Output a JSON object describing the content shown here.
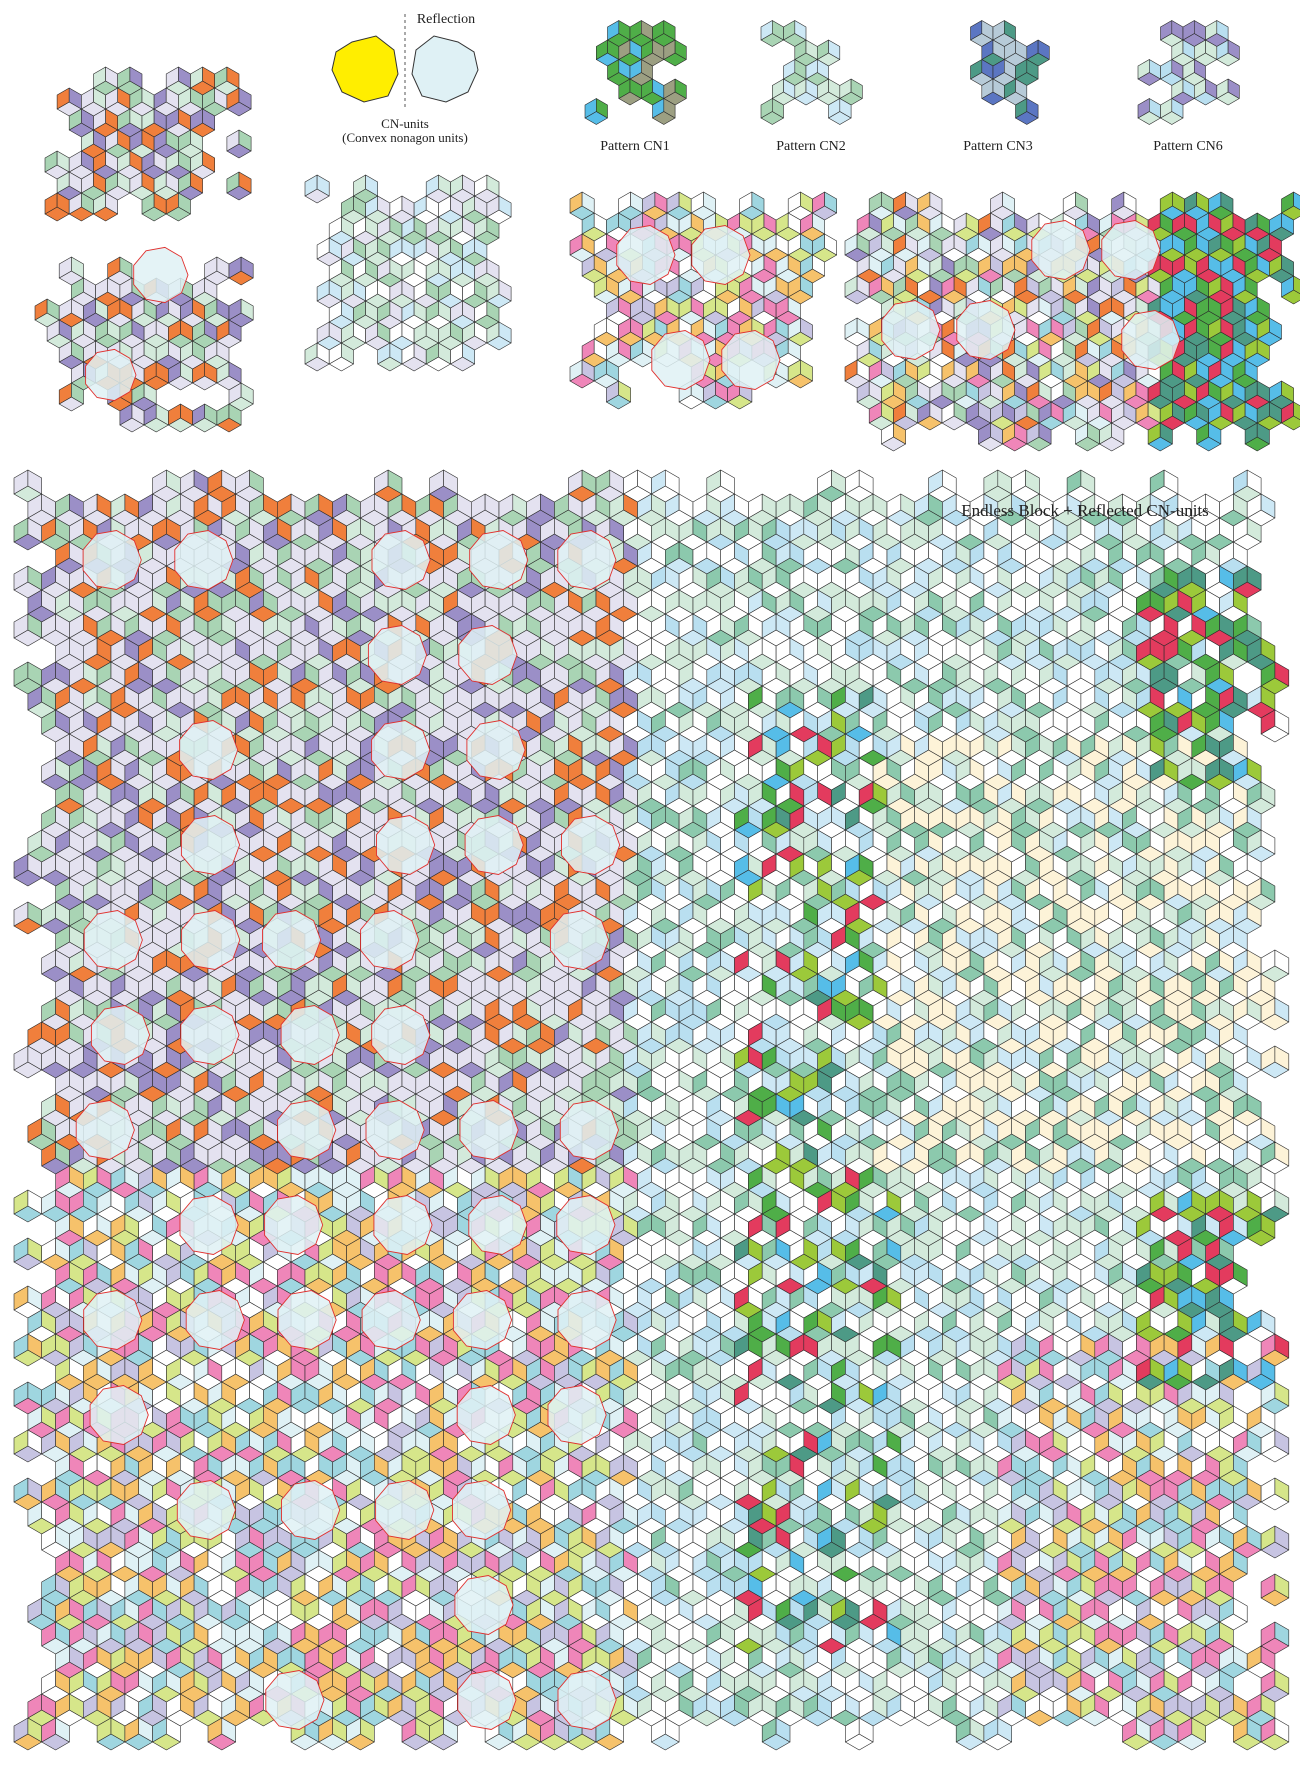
{
  "labels": {
    "reflection": "Reflection",
    "cn_units": "CN-units",
    "cn_units_sub": "(Convex nonagon units)",
    "patterns": [
      "Pattern CN1",
      "Pattern CN2",
      "Pattern CN3",
      "Pattern CN6"
    ],
    "main_title": "Endless Block + Reflected CN-units"
  }
}
